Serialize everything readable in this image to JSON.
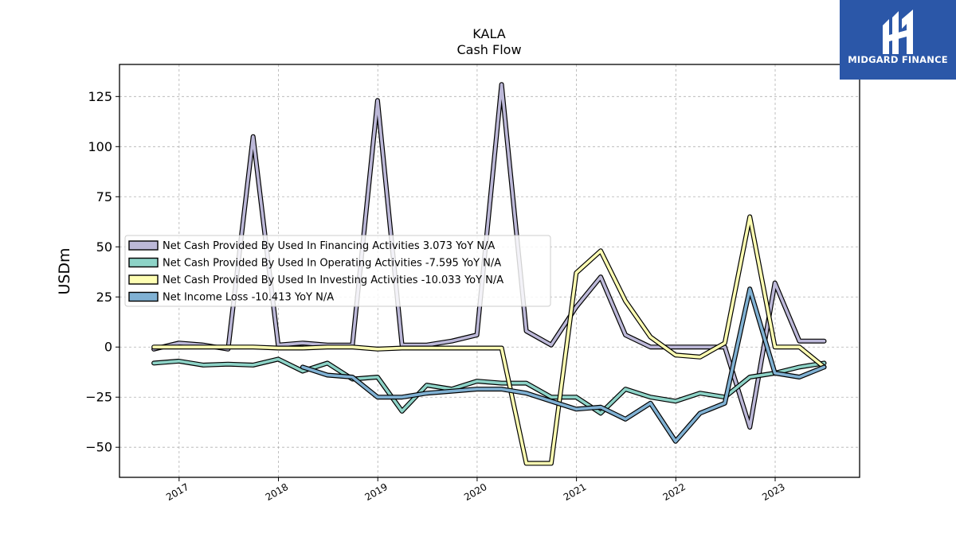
{
  "logo": {
    "text": "MIDGARD FINANCE",
    "icon": "midgard-logo-icon",
    "background": "#2b57a8"
  },
  "chart_data": {
    "type": "line",
    "title": "KALA",
    "subtitle": "Cash Flow",
    "ylabel": "USDm",
    "xlabel": "",
    "ylim": [
      -65,
      141
    ],
    "xlim": [
      2016.4,
      2023.85
    ],
    "yticks": [
      -50,
      -25,
      0,
      25,
      50,
      75,
      100,
      125
    ],
    "xticks": [
      "2017",
      "2018",
      "2019",
      "2020",
      "2021",
      "2022",
      "2023"
    ],
    "grid": true,
    "legend_position": "center-left",
    "x": [
      "2016-09-30",
      "2016-12-31",
      "2017-03-31",
      "2017-06-30",
      "2017-09-30",
      "2017-12-31",
      "2018-03-31",
      "2018-06-30",
      "2018-09-30",
      "2018-12-31",
      "2019-03-31",
      "2019-06-30",
      "2019-09-30",
      "2019-12-31",
      "2020-03-31",
      "2020-06-30",
      "2020-09-30",
      "2020-12-31",
      "2021-03-31",
      "2021-06-30",
      "2021-09-30",
      "2021-12-31",
      "2022-03-31",
      "2022-06-30",
      "2022-09-30",
      "2022-12-31",
      "2023-03-31",
      "2023-06-30"
    ],
    "series": [
      {
        "name": "Net Cash Provided By Used In Financing Activities  3.073 YoY N/A",
        "color": "#bcb8d8",
        "values": [
          -1,
          2,
          1,
          -1,
          105,
          1,
          2,
          1,
          1,
          123,
          1,
          1,
          3,
          6,
          131,
          8,
          1,
          20,
          35,
          6,
          0,
          0,
          0,
          0,
          -40,
          32,
          3,
          3
        ]
      },
      {
        "name": "Net Cash Provided By Used In Operating Activities  -7.595 YoY N/A",
        "color": "#8dd3c7",
        "values": [
          -8,
          -7,
          -9,
          -8.5,
          -9,
          -6,
          -12,
          -8,
          -16,
          -15,
          -32,
          -19,
          -21,
          -17,
          -18,
          -18,
          -25,
          -25,
          -33,
          -21,
          -25,
          -27,
          -23,
          -25,
          -15,
          -13,
          -10,
          -8
        ]
      },
      {
        "name": "Net Cash Provided By Used In Investing Activities  -10.033 YoY N/A",
        "color": "#ffffb3",
        "values": [
          0,
          0,
          0,
          0,
          0,
          -0.5,
          -0.5,
          0,
          0,
          -1,
          -0.5,
          -0.5,
          -0.5,
          -0.5,
          -0.5,
          -58,
          -58,
          37,
          48,
          23,
          5,
          -4,
          -5,
          2,
          65,
          0,
          0,
          -10
        ]
      },
      {
        "name": "Net Income Loss  -10.413 YoY N/A",
        "color": "#80b1d3",
        "values": [
          null,
          null,
          null,
          null,
          null,
          null,
          -10,
          -14,
          -15,
          -25,
          -25,
          -23,
          -22,
          -21,
          -21,
          -23,
          -27,
          -31,
          -30,
          -36,
          -28,
          -47,
          -33,
          -28,
          29,
          -13,
          -15,
          -10
        ]
      }
    ]
  }
}
